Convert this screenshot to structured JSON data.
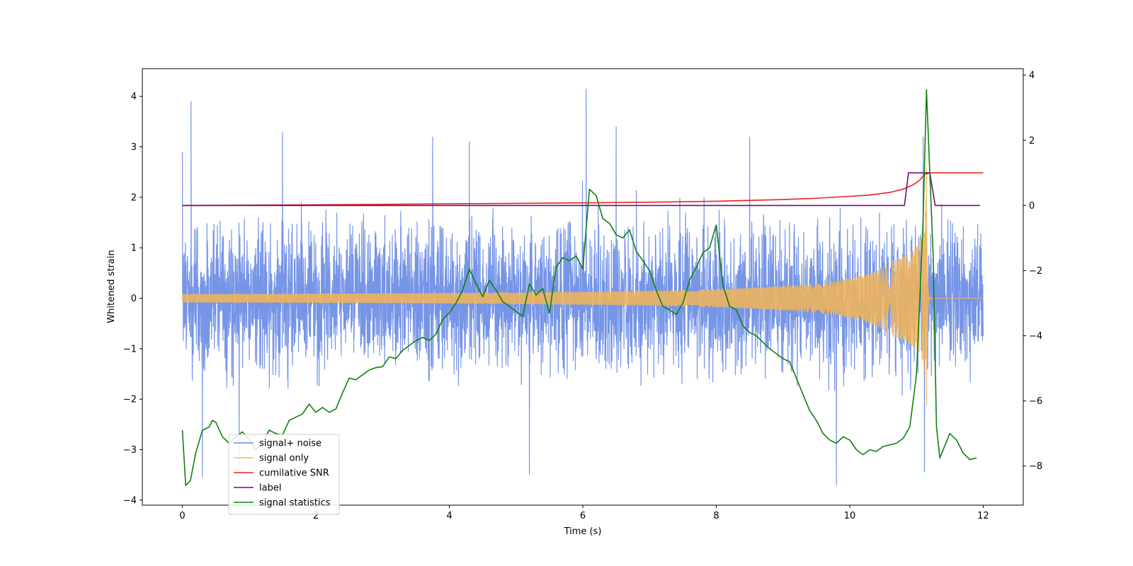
{
  "chart_data": {
    "type": "line",
    "xlabel": "Time (s)",
    "ylabel": "Whitened strain",
    "xlim": [
      -0.6,
      12.6
    ],
    "ylim": [
      -4.1,
      4.55
    ],
    "ylim_right": [
      -9.2,
      4.2
    ],
    "x_ticks": [
      0,
      2,
      4,
      6,
      8,
      10,
      12
    ],
    "x_tick_labels": [
      "0",
      "2",
      "4",
      "6",
      "8",
      "10",
      "12"
    ],
    "y_ticks": [
      -4,
      -3,
      -2,
      -1,
      0,
      1,
      2,
      3,
      4
    ],
    "y_tick_labels": [
      "−4",
      "−3",
      "−2",
      "−1",
      "0",
      "1",
      "2",
      "3",
      "4"
    ],
    "y_ticks_right": [
      -8,
      -6,
      -4,
      -2,
      0,
      2,
      4
    ],
    "y_tick_labels_right": [
      "−8",
      "−6",
      "−4",
      "−2",
      "0",
      "2",
      "4"
    ],
    "grid": false,
    "legend_position": "lower-left",
    "series": [
      {
        "name": "signal+ noise",
        "color": "#6f8fe6",
        "axis": "left",
        "style": "noise",
        "x_range": [
          0,
          12
        ],
        "envelope_low": -2.0,
        "envelope_high": 1.95,
        "spike_extremes": [
          {
            "x": 0.0,
            "y": 2.9
          },
          {
            "x": 0.13,
            "y": 3.9
          },
          {
            "x": 0.3,
            "y": -3.55
          },
          {
            "x": 0.85,
            "y": -3.35
          },
          {
            "x": 1.5,
            "y": 3.3
          },
          {
            "x": 3.75,
            "y": 3.2
          },
          {
            "x": 4.3,
            "y": 3.1
          },
          {
            "x": 6.05,
            "y": 4.15
          },
          {
            "x": 5.2,
            "y": -3.5
          },
          {
            "x": 6.5,
            "y": 3.4
          },
          {
            "x": 8.5,
            "y": 3.2
          },
          {
            "x": 9.8,
            "y": -3.7
          },
          {
            "x": 11.1,
            "y": 3.2
          },
          {
            "x": 11.12,
            "y": -3.45
          }
        ]
      },
      {
        "name": "signal only",
        "color": "#f5b556",
        "axis": "left",
        "style": "chirp",
        "x_range": [
          0,
          12
        ],
        "merger_time": 11.15,
        "peak_amplitude": 2.6
      },
      {
        "name": "cumilative SNR",
        "color": "#e8231e",
        "axis": "right",
        "x": [
          0,
          2,
          4,
          6,
          7,
          8,
          9,
          9.5,
          10,
          10.3,
          10.6,
          10.8,
          10.95,
          11.05,
          11.12,
          11.2,
          12
        ],
        "y": [
          0,
          0.02,
          0.05,
          0.08,
          0.1,
          0.13,
          0.18,
          0.22,
          0.28,
          0.32,
          0.4,
          0.5,
          0.63,
          0.78,
          0.95,
          1.0,
          1.0
        ]
      },
      {
        "name": "label",
        "color": "#6a0d78",
        "axis": "right",
        "x": [
          0,
          10.82,
          10.88,
          11.2,
          11.28,
          11.95
        ],
        "y": [
          0,
          0,
          1,
          1,
          0,
          0
        ]
      },
      {
        "name": "signal statistics",
        "color": "#11800f",
        "axis": "right",
        "x": [
          0,
          0.05,
          0.12,
          0.2,
          0.3,
          0.4,
          0.45,
          0.5,
          0.6,
          0.7,
          0.8,
          0.9,
          1.0,
          1.1,
          1.2,
          1.3,
          1.4,
          1.5,
          1.6,
          1.7,
          1.8,
          1.9,
          2.0,
          2.1,
          2.2,
          2.3,
          2.4,
          2.5,
          2.6,
          2.7,
          2.8,
          2.9,
          3.0,
          3.1,
          3.2,
          3.3,
          3.4,
          3.5,
          3.6,
          3.7,
          3.8,
          3.9,
          4.0,
          4.1,
          4.2,
          4.3,
          4.4,
          4.5,
          4.6,
          4.7,
          4.8,
          4.9,
          5.0,
          5.1,
          5.2,
          5.3,
          5.4,
          5.5,
          5.6,
          5.7,
          5.8,
          5.9,
          6.0,
          6.1,
          6.2,
          6.3,
          6.4,
          6.5,
          6.6,
          6.7,
          6.8,
          6.9,
          7.0,
          7.1,
          7.2,
          7.3,
          7.4,
          7.5,
          7.6,
          7.7,
          7.8,
          7.9,
          8.0,
          8.1,
          8.2,
          8.3,
          8.4,
          8.5,
          8.6,
          8.7,
          8.8,
          8.9,
          9.0,
          9.1,
          9.2,
          9.3,
          9.4,
          9.5,
          9.6,
          9.7,
          9.8,
          9.9,
          10.0,
          10.1,
          10.2,
          10.3,
          10.4,
          10.5,
          10.6,
          10.7,
          10.8,
          10.9,
          11.0,
          11.05,
          11.1,
          11.15,
          11.2,
          11.25,
          11.3,
          11.35,
          11.4,
          11.5,
          11.6,
          11.7,
          11.8,
          11.9
        ],
        "y": [
          -6.9,
          -8.6,
          -8.45,
          -7.6,
          -6.9,
          -6.8,
          -6.6,
          -6.65,
          -7.1,
          -7.3,
          -7.1,
          -6.95,
          -7.2,
          -7.5,
          -7.3,
          -6.9,
          -7.0,
          -7.05,
          -6.6,
          -6.5,
          -6.4,
          -6.1,
          -6.35,
          -6.2,
          -6.35,
          -6.25,
          -5.75,
          -5.3,
          -5.35,
          -5.2,
          -5.05,
          -4.98,
          -4.95,
          -4.65,
          -4.7,
          -4.45,
          -4.3,
          -4.15,
          -4.05,
          -4.15,
          -3.95,
          -3.5,
          -3.3,
          -3.0,
          -2.6,
          -1.95,
          -2.4,
          -2.8,
          -2.3,
          -2.6,
          -2.95,
          -3.1,
          -3.25,
          -3.4,
          -2.4,
          -2.75,
          -2.55,
          -3.3,
          -1.9,
          -1.6,
          -1.7,
          -1.55,
          -1.95,
          0.5,
          0.3,
          -0.4,
          -0.55,
          -0.9,
          -1.0,
          -0.75,
          -1.4,
          -1.7,
          -2.0,
          -2.6,
          -3.1,
          -3.2,
          -3.35,
          -3.0,
          -2.3,
          -1.9,
          -1.45,
          -1.3,
          -0.6,
          -2.45,
          -3.1,
          -3.2,
          -3.7,
          -3.9,
          -4.0,
          -4.2,
          -4.4,
          -4.55,
          -4.7,
          -4.8,
          -5.3,
          -5.8,
          -6.3,
          -6.6,
          -7.0,
          -7.2,
          -7.3,
          -7.1,
          -7.2,
          -7.5,
          -7.65,
          -7.5,
          -7.55,
          -7.4,
          -7.35,
          -7.3,
          -7.15,
          -6.8,
          -5.2,
          -2.9,
          -0.4,
          3.55,
          1.0,
          -1.5,
          -6.8,
          -7.75,
          -7.5,
          -7.0,
          -7.2,
          -7.6,
          -7.8,
          -7.75
        ]
      }
    ]
  }
}
